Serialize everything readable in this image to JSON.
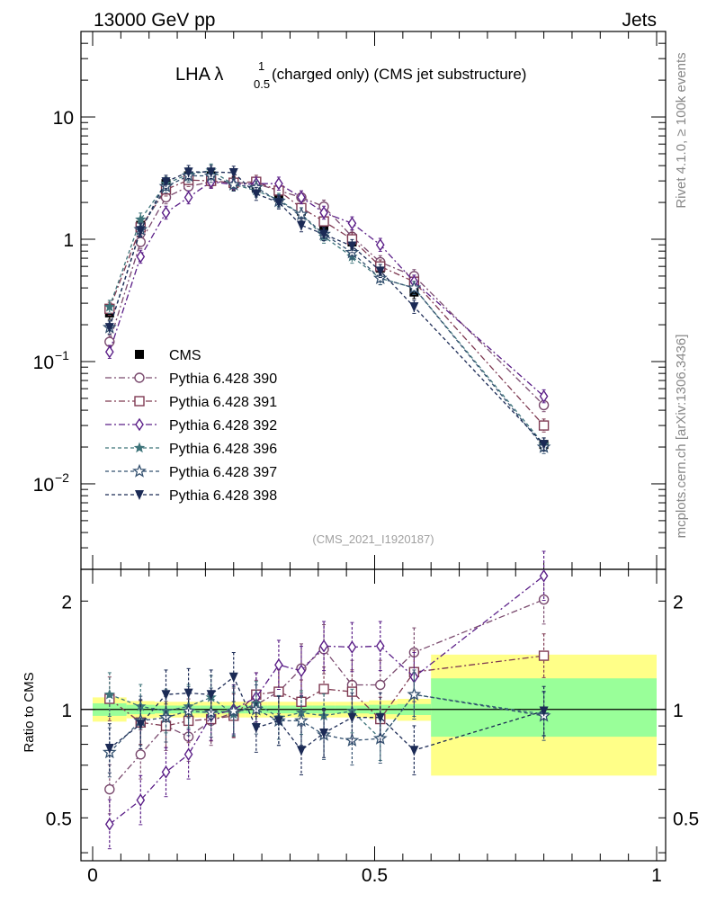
{
  "header": {
    "left": "13000 GeV pp",
    "right": "Jets"
  },
  "side": {
    "rivet": "Rivet 4.1.0, ≥ 100k events",
    "mcplots": "mcplots.cern.ch [arXiv:1306.3436]"
  },
  "colors": {
    "data": "#000000",
    "p390": "#7a4a6e",
    "p391": "#7f3a52",
    "p392": "#5b1f88",
    "p396": "#3d7379",
    "p397": "#33506f",
    "p398": "#1b2a55",
    "band_inner": "#99ff99",
    "band_outer": "#ffff88"
  },
  "chart_data": [
    {
      "type": "scatter",
      "panel": "main",
      "title": "LHA λ^1_0.5 (charged only) (CMS jet substructure)",
      "title_parts": {
        "base": "LHA λ",
        "sup": "1",
        "sub": "0.5",
        "rest": "(charged only) (CMS jet substructure)"
      },
      "watermark": "(CMS_2021_I1920187)",
      "ylog": true,
      "ylim": [
        0.002,
        50
      ],
      "xlim": [
        -0.02,
        1.0
      ],
      "y_ticks": [
        {
          "value": 10,
          "label": "10"
        },
        {
          "value": 1,
          "label": "1"
        },
        {
          "value": 0.1,
          "label": "10",
          "exp": "−1"
        },
        {
          "value": 0.01,
          "label": "10",
          "exp": "−2"
        }
      ],
      "x": [
        0.03,
        0.085,
        0.13,
        0.17,
        0.21,
        0.25,
        0.29,
        0.33,
        0.37,
        0.41,
        0.46,
        0.51,
        0.57,
        0.8
      ],
      "series": [
        {
          "name": "CMS",
          "color_key": "data",
          "marker": "square",
          "line": "none",
          "values": [
            0.25,
            1.3,
            2.85,
            3.3,
            3.3,
            2.85,
            2.65,
            2.2,
            1.7,
            1.28,
            0.95,
            0.58,
            0.37,
            0.021
          ],
          "err": 0.13
        },
        {
          "name": "Pythia 6.428 390",
          "color_key": "p390",
          "marker": "circle",
          "line": "dashdot",
          "values": [
            0.145,
            0.95,
            2.2,
            2.7,
            2.95,
            2.9,
            2.85,
            2.5,
            2.2,
            1.85,
            1.05,
            0.65,
            0.5,
            0.044
          ],
          "err": 0.13
        },
        {
          "name": "Pythia 6.428 391",
          "color_key": "p391",
          "marker": "square-open",
          "line": "dashdot",
          "values": [
            0.27,
            1.25,
            2.55,
            3.05,
            3.0,
            2.9,
            2.95,
            2.5,
            1.8,
            1.4,
            1.0,
            0.6,
            0.45,
            0.03
          ],
          "err": 0.13
        },
        {
          "name": "Pythia 6.428 392",
          "color_key": "p392",
          "marker": "diamond",
          "line": "dashdot",
          "values": [
            0.12,
            0.72,
            1.65,
            2.2,
            2.95,
            2.8,
            2.85,
            2.85,
            2.2,
            1.65,
            1.35,
            0.9,
            0.45,
            0.052
          ],
          "err": 0.13
        },
        {
          "name": "Pythia 6.428 396",
          "color_key": "p396",
          "marker": "star",
          "line": "dashed",
          "values": [
            0.28,
            1.45,
            2.85,
            3.4,
            3.65,
            2.8,
            2.5,
            2.1,
            1.6,
            1.05,
            0.72,
            0.48,
            0.4,
            0.021
          ],
          "err": 0.13
        },
        {
          "name": "Pythia 6.428 397",
          "color_key": "p397",
          "marker": "star-open",
          "line": "dashed",
          "values": [
            0.19,
            1.2,
            2.7,
            3.3,
            3.3,
            2.8,
            2.65,
            2.05,
            1.6,
            1.1,
            0.78,
            0.48,
            0.4,
            0.02
          ],
          "err": 0.13
        },
        {
          "name": "Pythia 6.428 398",
          "color_key": "p398",
          "marker": "triangle-down",
          "line": "dashed",
          "values": [
            0.19,
            1.18,
            2.95,
            3.55,
            3.55,
            3.5,
            2.35,
            2.0,
            1.3,
            1.1,
            0.88,
            0.55,
            0.28,
            0.021
          ],
          "err": 0.13
        }
      ],
      "legend": [
        "CMS",
        "Pythia 6.428 390",
        "Pythia 6.428 391",
        "Pythia 6.428 392",
        "Pythia 6.428 396",
        "Pythia 6.428 397",
        "Pythia 6.428 398"
      ],
      "legend_position": "bottom-left"
    },
    {
      "type": "scatter",
      "panel": "ratio",
      "ylabel": "Ratio to CMS",
      "ylog": true,
      "ylim": [
        0.38,
        2.45
      ],
      "xlim": [
        -0.02,
        1.0
      ],
      "y_ticks": [
        {
          "value": 2,
          "label": "2"
        },
        {
          "value": 1,
          "label": "1"
        },
        {
          "value": 0.5,
          "label": "0.5"
        }
      ],
      "x_ticks": [
        {
          "value": 0,
          "label": "0"
        },
        {
          "value": 0.5,
          "label": "0.5"
        },
        {
          "value": 1,
          "label": "1"
        }
      ],
      "reference_line": 1,
      "bands": [
        {
          "x0": 0.0,
          "x1": 0.06,
          "inner": [
            0.96,
            1.04
          ],
          "outer": [
            0.925,
            1.08
          ]
        },
        {
          "x0": 0.06,
          "x1": 0.11,
          "inner": [
            0.97,
            1.03
          ],
          "outer": [
            0.945,
            1.055
          ]
        },
        {
          "x0": 0.11,
          "x1": 0.15,
          "inner": [
            0.975,
            1.025
          ],
          "outer": [
            0.95,
            1.05
          ]
        },
        {
          "x0": 0.15,
          "x1": 0.19,
          "inner": [
            0.975,
            1.025
          ],
          "outer": [
            0.95,
            1.05
          ]
        },
        {
          "x0": 0.19,
          "x1": 0.23,
          "inner": [
            0.975,
            1.025
          ],
          "outer": [
            0.95,
            1.05
          ]
        },
        {
          "x0": 0.23,
          "x1": 0.27,
          "inner": [
            0.975,
            1.025
          ],
          "outer": [
            0.95,
            1.05
          ]
        },
        {
          "x0": 0.27,
          "x1": 0.31,
          "inner": [
            0.975,
            1.025
          ],
          "outer": [
            0.95,
            1.05
          ]
        },
        {
          "x0": 0.31,
          "x1": 0.35,
          "inner": [
            0.975,
            1.025
          ],
          "outer": [
            0.95,
            1.05
          ]
        },
        {
          "x0": 0.35,
          "x1": 0.39,
          "inner": [
            0.975,
            1.025
          ],
          "outer": [
            0.95,
            1.05
          ]
        },
        {
          "x0": 0.39,
          "x1": 0.43,
          "inner": [
            0.975,
            1.025
          ],
          "outer": [
            0.95,
            1.05
          ]
        },
        {
          "x0": 0.43,
          "x1": 0.49,
          "inner": [
            0.975,
            1.025
          ],
          "outer": [
            0.95,
            1.05
          ]
        },
        {
          "x0": 0.49,
          "x1": 0.54,
          "inner": [
            0.97,
            1.03
          ],
          "outer": [
            0.94,
            1.06
          ]
        },
        {
          "x0": 0.54,
          "x1": 0.6,
          "inner": [
            0.965,
            1.035
          ],
          "outer": [
            0.93,
            1.07
          ]
        },
        {
          "x0": 0.6,
          "x1": 1.0,
          "inner": [
            0.84,
            1.22
          ],
          "outer": [
            0.655,
            1.42
          ]
        }
      ],
      "x": [
        0.03,
        0.085,
        0.13,
        0.17,
        0.21,
        0.25,
        0.29,
        0.33,
        0.37,
        0.41,
        0.46,
        0.51,
        0.57,
        0.8
      ],
      "series": [
        {
          "name": "Pythia 6.428 390",
          "color_key": "p390",
          "marker": "circle",
          "line": "dashdot",
          "values": [
            0.6,
            0.75,
            0.9,
            0.84,
            0.93,
            0.98,
            1.03,
            1.12,
            1.3,
            1.47,
            1.17,
            1.17,
            1.44,
            2.02
          ],
          "err": 0.17
        },
        {
          "name": "Pythia 6.428 391",
          "color_key": "p391",
          "marker": "square-open",
          "line": "dashdot",
          "values": [
            1.07,
            0.92,
            0.9,
            0.93,
            0.94,
            0.96,
            1.1,
            1.12,
            1.05,
            1.14,
            1.12,
            0.94,
            1.27,
            1.41
          ],
          "err": 0.15
        },
        {
          "name": "Pythia 6.428 392",
          "color_key": "p392",
          "marker": "diamond",
          "line": "dashdot",
          "values": [
            0.48,
            0.56,
            0.67,
            0.75,
            0.96,
            1.0,
            1.08,
            1.33,
            1.28,
            1.5,
            1.49,
            1.5,
            1.23,
            2.35
          ],
          "err": 0.17
        },
        {
          "name": "Pythia 6.428 396",
          "color_key": "p396",
          "marker": "star",
          "line": "dashed",
          "values": [
            1.1,
            1.02,
            0.99,
            1.02,
            1.08,
            0.97,
            1.04,
            0.95,
            0.98,
            0.96,
            0.99,
            0.83,
            1.1,
            0.97
          ],
          "err": 0.15
        },
        {
          "name": "Pythia 6.428 397",
          "color_key": "p397",
          "marker": "star-open",
          "line": "dashed",
          "values": [
            0.76,
            0.93,
            0.95,
            0.99,
            0.98,
            0.99,
            1.0,
            0.93,
            0.93,
            0.85,
            0.82,
            0.83,
            1.1,
            0.96
          ],
          "err": 0.17
        },
        {
          "name": "Pythia 6.428 398",
          "color_key": "p398",
          "marker": "triangle-down",
          "line": "dashed",
          "values": [
            0.78,
            0.91,
            1.1,
            1.11,
            1.1,
            1.23,
            0.89,
            0.93,
            0.77,
            0.86,
            0.95,
            0.95,
            0.77,
            0.99
          ],
          "err": 0.17
        }
      ]
    }
  ]
}
